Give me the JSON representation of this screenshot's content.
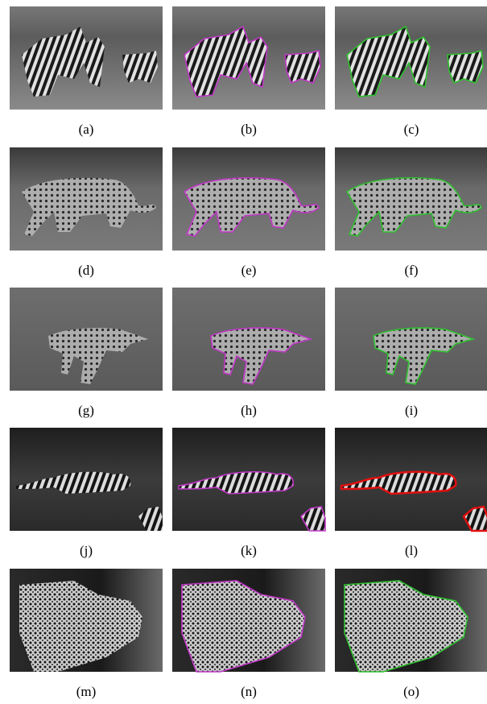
{
  "captions": [
    "(a)",
    "(b)",
    "(c)",
    "(d)",
    "(e)",
    "(f)",
    "(g)",
    "(h)",
    "(i)",
    "(j)",
    "(k)",
    "(l)",
    "(m)",
    "(n)",
    "(o)"
  ]
}
